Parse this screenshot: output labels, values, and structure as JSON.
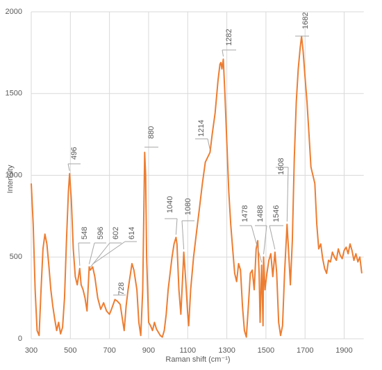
{
  "chart_data": {
    "type": "line",
    "x": [
      300,
      310,
      320,
      330,
      340,
      350,
      360,
      370,
      380,
      390,
      400,
      410,
      420,
      430,
      440,
      450,
      460,
      470,
      480,
      490,
      496,
      505,
      515,
      525,
      535,
      548,
      555,
      565,
      575,
      585,
      596,
      602,
      614,
      625,
      640,
      655,
      670,
      685,
      700,
      710,
      728,
      740,
      755,
      765,
      775,
      785,
      795,
      805,
      815,
      825,
      840,
      850,
      860,
      870,
      880,
      885,
      890,
      900,
      910,
      920,
      930,
      940,
      950,
      960,
      970,
      980,
      990,
      1000,
      1010,
      1020,
      1030,
      1040,
      1045,
      1055,
      1065,
      1075,
      1080,
      1090,
      1100,
      1105,
      1115,
      1130,
      1145,
      1160,
      1175,
      1190,
      1214,
      1225,
      1240,
      1255,
      1265,
      1270,
      1275,
      1282,
      1290,
      1300,
      1310,
      1320,
      1330,
      1340,
      1350,
      1360,
      1370,
      1380,
      1390,
      1400,
      1410,
      1420,
      1430,
      1440,
      1450,
      1458,
      1465,
      1470,
      1478,
      1485,
      1488,
      1495,
      1505,
      1515,
      1525,
      1535,
      1546,
      1555,
      1565,
      1575,
      1585,
      1595,
      1608,
      1615,
      1625,
      1635,
      1645,
      1655,
      1665,
      1675,
      1682,
      1690,
      1700,
      1710,
      1720,
      1730,
      1740,
      1750,
      1760,
      1770,
      1780,
      1790,
      1800,
      1810,
      1820,
      1830,
      1840,
      1850,
      1860,
      1870,
      1880,
      1890,
      1900,
      1910,
      1920,
      1930,
      1940,
      1950,
      1960,
      1970,
      1980,
      1990
    ],
    "series": [
      {
        "name": "Intensity",
        "color": "#ed7d31",
        "values": [
          950,
          700,
          300,
          50,
          20,
          300,
          550,
          640,
          580,
          450,
          300,
          200,
          120,
          50,
          100,
          30,
          70,
          250,
          600,
          900,
          1010,
          850,
          550,
          380,
          330,
          430,
          330,
          300,
          250,
          170,
          440,
          420,
          440,
          380,
          250,
          180,
          220,
          170,
          150,
          180,
          240,
          230,
          210,
          130,
          50,
          200,
          300,
          380,
          460,
          420,
          300,
          100,
          20,
          300,
          1140,
          1000,
          500,
          100,
          80,
          50,
          100,
          60,
          40,
          20,
          10,
          50,
          150,
          300,
          400,
          500,
          580,
          620,
          580,
          300,
          150,
          400,
          530,
          350,
          150,
          80,
          300,
          500,
          650,
          800,
          950,
          1080,
          1140,
          1250,
          1380,
          1580,
          1680,
          1690,
          1650,
          1710,
          1500,
          1200,
          900,
          700,
          550,
          400,
          350,
          460,
          420,
          200,
          50,
          10,
          200,
          400,
          420,
          300,
          550,
          600,
          400,
          100,
          450,
          80,
          500,
          300,
          400,
          480,
          520,
          380,
          530,
          400,
          100,
          20,
          80,
          400,
          700,
          550,
          330,
          600,
          1100,
          1450,
          1650,
          1780,
          1850,
          1760,
          1600,
          1450,
          1250,
          1050,
          1000,
          950,
          700,
          550,
          580,
          490,
          430,
          400,
          480,
          470,
          530,
          500,
          480,
          550,
          510,
          490,
          540,
          560,
          520,
          580,
          540,
          480,
          520,
          470,
          500,
          400
        ]
      }
    ],
    "annotations": [
      "496",
      "548",
      "596",
      "602",
      "614",
      "728",
      "880",
      "1040",
      "1080",
      "1214",
      "1282",
      "1478",
      "1488",
      "1546",
      "1608",
      "1682"
    ],
    "xlabel": "Raman shift (cm⁻¹)",
    "ylabel": "Intensity",
    "xlim": [
      300,
      2000
    ],
    "ylim": [
      0,
      2000
    ],
    "xticks": [
      300,
      500,
      700,
      900,
      1100,
      1300,
      1500,
      1700,
      1900
    ],
    "yticks": [
      0,
      500,
      1000,
      1500,
      2000
    ],
    "grid": true
  }
}
